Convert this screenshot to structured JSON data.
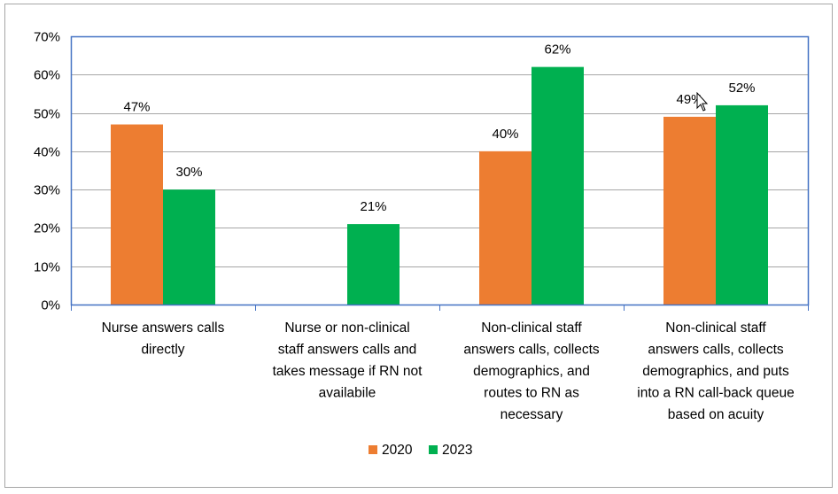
{
  "chart_data": {
    "type": "bar",
    "title": "",
    "xlabel": "",
    "ylabel": "",
    "ylim": [
      0,
      70
    ],
    "yticks": [
      "0%",
      "10%",
      "20%",
      "30%",
      "40%",
      "50%",
      "60%",
      "70%"
    ],
    "ytick_values": [
      0,
      10,
      20,
      30,
      40,
      50,
      60,
      70
    ],
    "grid": true,
    "legend_position": "bottom",
    "categories": [
      [
        "Nurse answers calls",
        "directly"
      ],
      [
        "Nurse or non-clinical",
        "staff answers calls and",
        "takes message if RN not",
        "availabile"
      ],
      [
        "Non-clinical staff",
        "answers calls, collects",
        "demographics, and",
        "routes to RN as",
        "necessary"
      ],
      [
        "Non-clinical staff",
        "answers calls, collects",
        "demographics, and puts",
        "into a RN call-back queue",
        "based on acuity"
      ]
    ],
    "series": [
      {
        "name": "2020",
        "color": "#ed7d31",
        "values": [
          47,
          null,
          40,
          49
        ],
        "labels": [
          "47%",
          null,
          "40%",
          "49%"
        ]
      },
      {
        "name": "2023",
        "color": "#00b050",
        "values": [
          30,
          21,
          62,
          52
        ],
        "labels": [
          "30%",
          "21%",
          "62%",
          "52%"
        ]
      }
    ]
  },
  "colors": {
    "plot_border": "#4472c4",
    "gridline": "#a6a6a6",
    "frame_border": "#a6a6a6"
  }
}
